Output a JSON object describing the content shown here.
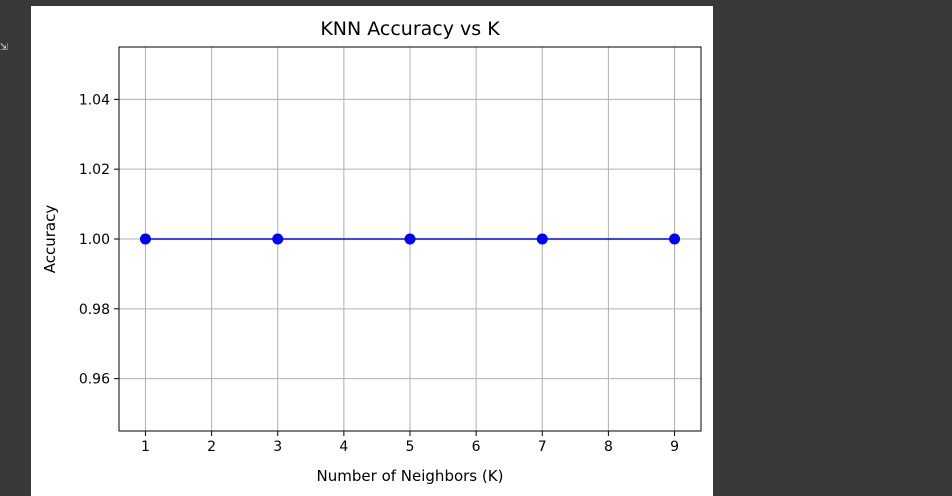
{
  "output_icon": "output-collapse-icon",
  "chart_data": {
    "type": "line",
    "title": "KNN Accuracy vs K",
    "xlabel": "Number of Neighbors (K)",
    "ylabel": "Accuracy",
    "x": [
      1,
      3,
      5,
      7,
      9
    ],
    "series": [
      {
        "values": [
          1.0,
          1.0,
          1.0,
          1.0,
          1.0
        ],
        "color": "#0000ff",
        "marker": "circle"
      }
    ],
    "xlim": [
      0.6,
      9.4
    ],
    "ylim": [
      0.945,
      1.055
    ],
    "xticks": [
      1,
      2,
      3,
      4,
      5,
      6,
      7,
      8,
      9
    ],
    "yticks": [
      "0.96",
      "0.98",
      "1.00",
      "1.02",
      "1.04"
    ],
    "ytick_values": [
      0.96,
      0.98,
      1.0,
      1.02,
      1.04
    ],
    "grid": true
  }
}
